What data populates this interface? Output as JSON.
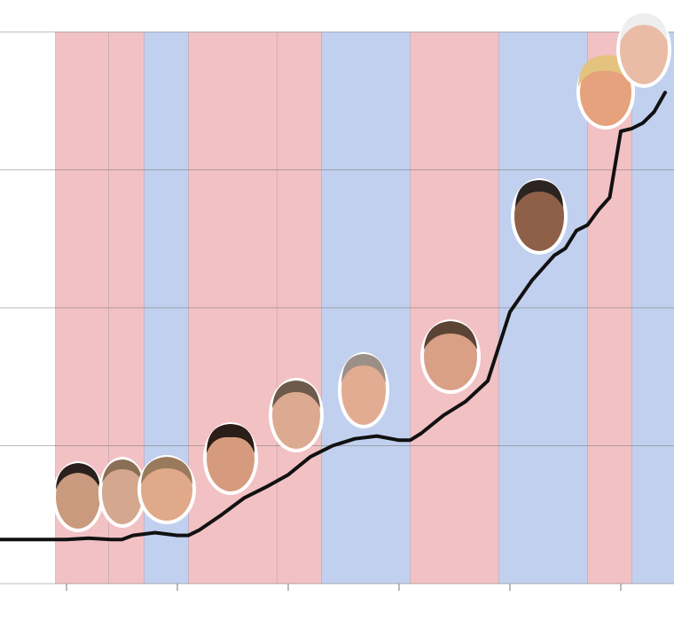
{
  "chart_data": {
    "type": "line",
    "x": [
      1964,
      1966,
      1968,
      1970,
      1972,
      1974,
      1975,
      1976,
      1978,
      1980,
      1981,
      1982,
      1984,
      1986,
      1988,
      1990,
      1992,
      1994,
      1996,
      1998,
      2000,
      2001,
      2002,
      2004,
      2006,
      2008,
      2010,
      2012,
      2013,
      2014,
      2015,
      2016,
      2017,
      2018,
      2019,
      2020,
      2021,
      2022,
      2023,
      2024
    ],
    "series": [
      {
        "color": "#111111",
        "values": [
          0.32,
          0.32,
          0.32,
          0.32,
          0.33,
          0.32,
          0.32,
          0.35,
          0.37,
          0.35,
          0.35,
          0.39,
          0.5,
          0.62,
          0.7,
          0.79,
          0.92,
          1.0,
          1.05,
          1.07,
          1.04,
          1.04,
          1.09,
          1.22,
          1.32,
          1.47,
          1.97,
          2.2,
          2.29,
          2.38,
          2.43,
          2.56,
          2.6,
          2.71,
          2.8,
          3.28,
          3.3,
          3.34,
          3.42,
          3.56
        ]
      }
    ],
    "terms": [
      {
        "start": 1969,
        "end": 1973.8,
        "color": "#f2c1c4"
      },
      {
        "start": 1973.8,
        "end": 1977,
        "color": "#f2c1c4"
      },
      {
        "start": 1977,
        "end": 1981,
        "color": "#c2d0ef"
      },
      {
        "start": 1981,
        "end": 1989,
        "color": "#f2c1c4"
      },
      {
        "start": 1989,
        "end": 1993,
        "color": "#f2c1c4"
      },
      {
        "start": 1993,
        "end": 2001,
        "color": "#c2d0ef"
      },
      {
        "start": 2001,
        "end": 2009,
        "color": "#f2c1c4"
      },
      {
        "start": 2009,
        "end": 2017,
        "color": "#c2d0ef"
      },
      {
        "start": 2017,
        "end": 2021,
        "color": "#f2c1c4"
      },
      {
        "start": 2021,
        "end": 2024.8,
        "color": "#c2d0ef"
      }
    ],
    "xlim": [
      1964,
      2024.8
    ],
    "xgrid": [
      1970,
      1980,
      1990,
      2000,
      2010,
      2020
    ],
    "ylim": [
      0,
      4
    ],
    "ygrid": [
      0,
      1,
      2,
      3,
      4
    ],
    "grid": true
  }
}
